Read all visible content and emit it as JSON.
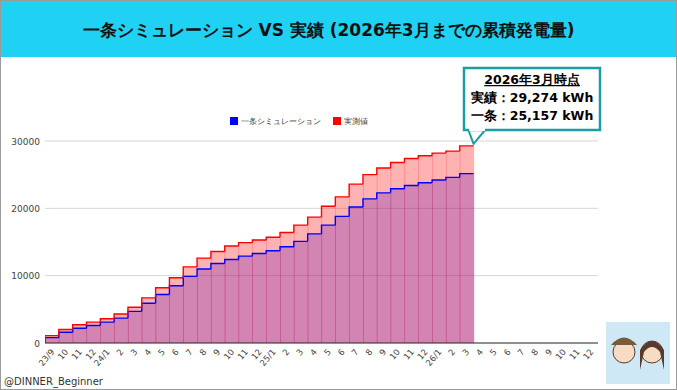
{
  "chart_data": {
    "type": "area",
    "title": "一条シミュレーション VS 実績 (2026年3月までの累積発電量)",
    "line_style": "step",
    "legend": "top",
    "grid": true,
    "categories": [
      "23/9",
      "10",
      "11",
      "12",
      "24/1",
      "2",
      "3",
      "4",
      "5",
      "6",
      "7",
      "8",
      "9",
      "10",
      "11",
      "12",
      "25/1",
      "2",
      "3",
      "4",
      "5",
      "6",
      "7",
      "8",
      "9",
      "10",
      "11",
      "12",
      "26/1",
      "2",
      "3",
      "4",
      "5",
      "6",
      "7",
      "8",
      "9",
      "10",
      "11",
      "12"
    ],
    "series": [
      {
        "name": "一条シミュレーション",
        "color": "#0000ff",
        "values": [
          800,
          1600,
          2200,
          2600,
          3100,
          3700,
          4700,
          5900,
          7200,
          8500,
          9900,
          11000,
          11800,
          12400,
          12900,
          13300,
          13700,
          14300,
          15100,
          16200,
          17500,
          18800,
          20200,
          21400,
          22300,
          22900,
          23400,
          23800,
          24200,
          24600,
          25157,
          null,
          null,
          null,
          null,
          null,
          null,
          null,
          null,
          null
        ]
      },
      {
        "name": "実測値",
        "color": "#ff0000",
        "values": [
          1100,
          2000,
          2700,
          3100,
          3600,
          4300,
          5300,
          6700,
          8200,
          9700,
          11300,
          12600,
          13600,
          14400,
          14900,
          15300,
          15700,
          16400,
          17500,
          18700,
          20300,
          21700,
          23600,
          25000,
          26000,
          26800,
          27400,
          27800,
          28200,
          28500,
          29274,
          null,
          null,
          null,
          null,
          null,
          null,
          null,
          null,
          null
        ]
      }
    ],
    "ylim": [
      0,
      30000
    ],
    "yticks": [
      0,
      10000,
      20000,
      30000
    ],
    "annotation": {
      "title": "2026年3月時点",
      "lines": [
        "実績：29,274 kWh",
        "一条：25,157 kWh"
      ]
    },
    "credit": "@DINNER_Beginner"
  }
}
